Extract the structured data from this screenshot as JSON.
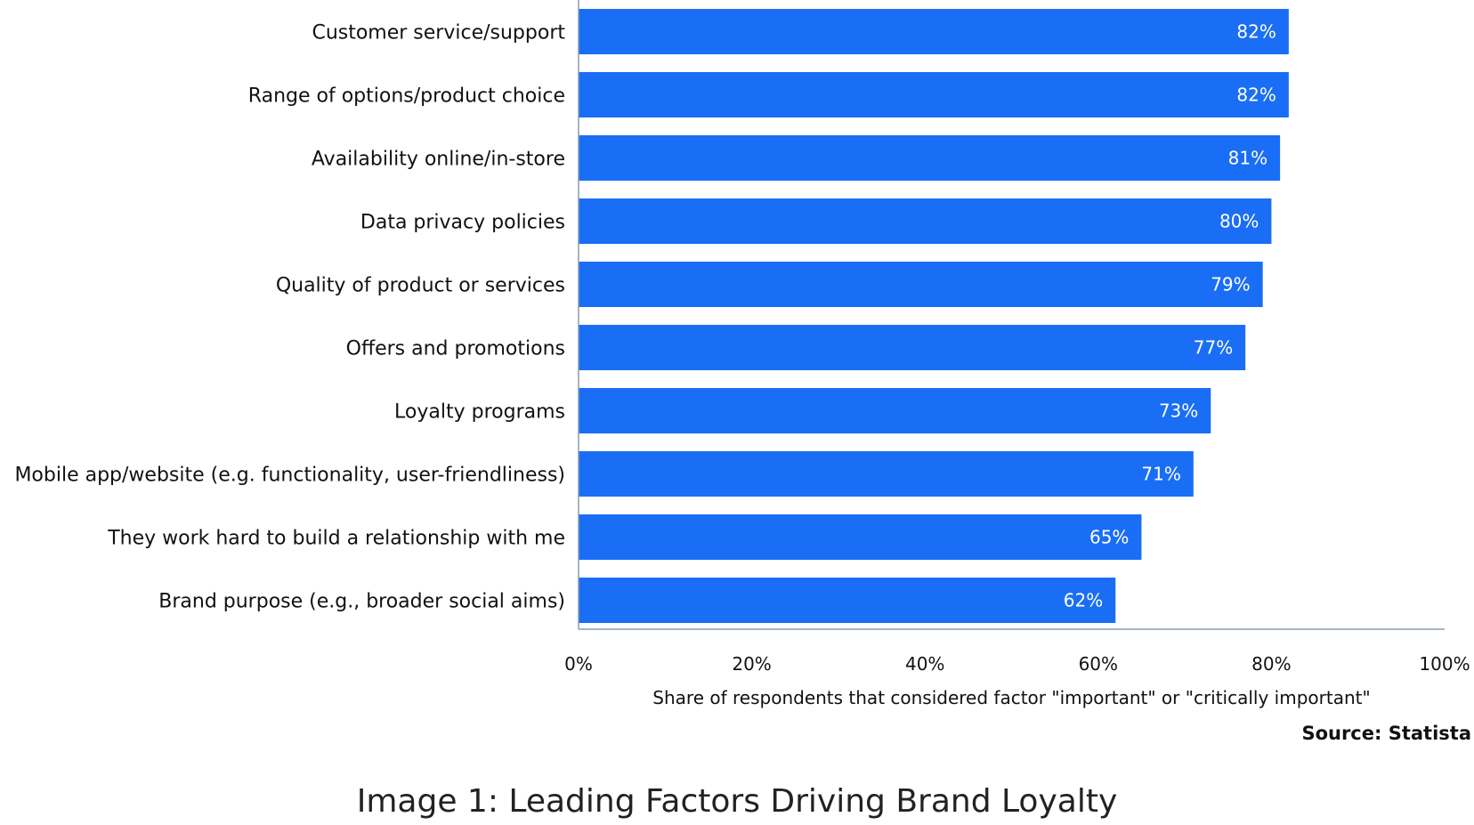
{
  "chart_data": {
    "type": "bar",
    "orientation": "horizontal",
    "categories": [
      "Customer service/support",
      "Range of options/product choice",
      "Availability online/in-store",
      "Data privacy policies",
      "Quality of product or services",
      "Offers and promotions",
      "Loyalty programs",
      "Mobile app/website (e.g. functionality, user-friendliness)",
      "They work hard to build a relationship with me",
      "Brand purpose (e.g., broader social aims)"
    ],
    "values": [
      82,
      82,
      81,
      80,
      79,
      77,
      73,
      71,
      65,
      62
    ],
    "value_labels": [
      "82%",
      "82%",
      "81%",
      "80%",
      "79%",
      "77%",
      "73%",
      "71%",
      "65%",
      "62%"
    ],
    "xlim": [
      0,
      100
    ],
    "ticks": [
      0,
      20,
      40,
      60,
      80,
      100
    ],
    "tick_labels": [
      "0%",
      "20%",
      "40%",
      "60%",
      "80%",
      "100%"
    ],
    "xlabel": "Share of respondents that considered factor \"important\" or \"critically important\"",
    "ylabel": "",
    "grid": false,
    "bar_color": "#1a6ef5",
    "axis_color": "#8a9bb0"
  },
  "source": "Source: Statista",
  "caption": "Image 1: Leading Factors Driving Brand Loyalty"
}
